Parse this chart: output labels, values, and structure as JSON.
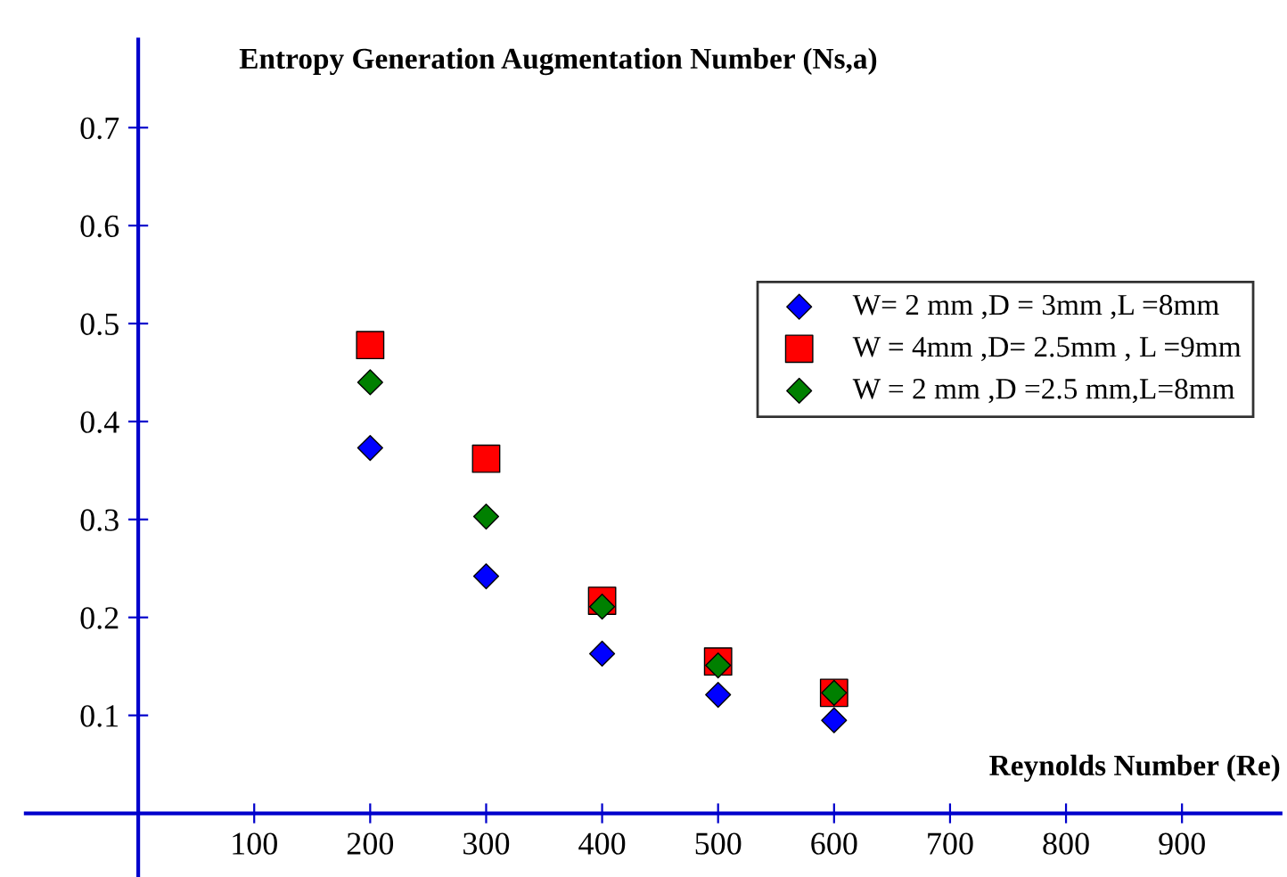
{
  "chart_data": {
    "type": "scatter",
    "xlabel": "Reynolds Number (Re)",
    "ylabel": "Entropy Generation Augmentation Number (Ns,a)",
    "x": [
      200,
      300,
      400,
      500,
      600
    ],
    "series": [
      {
        "name": "W= 2 mm ,D = 3mm ,L =8mm",
        "color": "#0000ff",
        "marker": "diamond",
        "values": [
          0.373,
          0.242,
          0.163,
          0.121,
          0.095
        ]
      },
      {
        "name": "W = 4mm ,D= 2.5mm , L =9mm",
        "color": "#ff0000",
        "marker": "square",
        "values": [
          0.478,
          0.362,
          0.217,
          0.155,
          0.123
        ]
      },
      {
        "name": "W = 2 mm ,D =2.5 mm,L=8mm",
        "color": "#008000",
        "marker": "diamond",
        "values": [
          0.44,
          0.303,
          0.211,
          0.151,
          0.123
        ]
      }
    ],
    "xlim": [
      -97,
      985
    ],
    "ylim": [
      -0.065,
      0.79
    ],
    "xticks": [
      100,
      200,
      300,
      400,
      500,
      600,
      700,
      800,
      900
    ],
    "yticks": [
      0.1,
      0.2,
      0.3,
      0.4,
      0.5,
      0.6,
      0.7
    ],
    "legend": "right",
    "grid": false
  }
}
